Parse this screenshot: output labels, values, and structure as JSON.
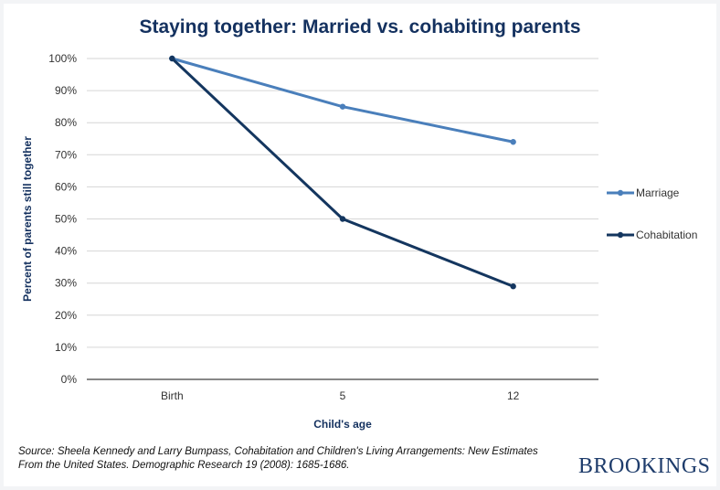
{
  "chart_data": {
    "type": "line",
    "title": "Staying together: Married vs. cohabiting parents",
    "xlabel": "Child's age",
    "ylabel": "Percent of parents still together",
    "categories": [
      "Birth",
      "5",
      "12"
    ],
    "yticks": [
      "0%",
      "10%",
      "20%",
      "30%",
      "40%",
      "50%",
      "60%",
      "70%",
      "80%",
      "90%",
      "100%"
    ],
    "ylim": [
      0,
      100
    ],
    "grid": true,
    "legend_position": "right",
    "series": [
      {
        "name": "Marriage",
        "values": [
          100,
          85,
          74
        ],
        "color": "#4a7fbb"
      },
      {
        "name": "Cohabitation",
        "values": [
          100,
          50,
          29
        ],
        "color": "#14365f"
      }
    ]
  },
  "source": "Source: Sheela Kennedy and Larry Bumpass, Cohabitation and Children's Living Arrangements: New Estimates From the United States. Demographic Research 19 (2008): 1685-1686.",
  "brand": "BROOKINGS"
}
